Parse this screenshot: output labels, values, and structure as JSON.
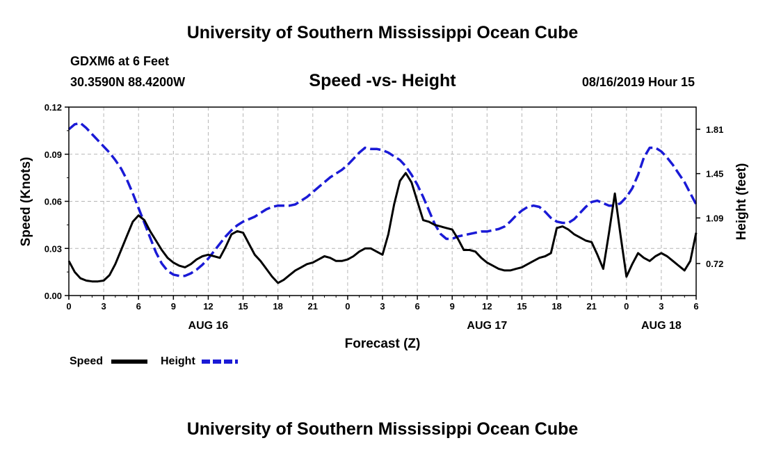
{
  "header": {
    "title": "University of Southern Mississippi Ocean Cube",
    "station": "GDXM6 at 6 Feet",
    "coords": "30.3590N 88.4200W",
    "date_hour": "08/16/2019 Hour 15"
  },
  "footer": {
    "title": "University of Southern Mississippi Ocean Cube"
  },
  "legend": {
    "speed_label": "Speed",
    "height_label": "Height"
  },
  "chart_data": {
    "type": "line",
    "title": "Speed -vs- Height",
    "xlabel": "Forecast (Z)",
    "ylabel_left": "Speed (Knots)",
    "ylabel_right": "Height (feet)",
    "x_unit": "hours since Aug 16 00Z",
    "xlim": [
      0,
      54
    ],
    "ylim_left": [
      0,
      0.12
    ],
    "ylim_right": [
      0.46,
      1.99
    ],
    "left_ticks": [
      "0.00",
      "0.03",
      "0.06",
      "0.09",
      "0.12"
    ],
    "right_ticks": [
      "0.72",
      "1.09",
      "1.45",
      "1.81"
    ],
    "x_ticks": [
      {
        "x": 0,
        "label": "0"
      },
      {
        "x": 3,
        "label": "3"
      },
      {
        "x": 6,
        "label": "6"
      },
      {
        "x": 9,
        "label": "9"
      },
      {
        "x": 12,
        "label": "12"
      },
      {
        "x": 15,
        "label": "15"
      },
      {
        "x": 18,
        "label": "18"
      },
      {
        "x": 21,
        "label": "21"
      },
      {
        "x": 24,
        "label": "0"
      },
      {
        "x": 27,
        "label": "3"
      },
      {
        "x": 30,
        "label": "6"
      },
      {
        "x": 33,
        "label": "9"
      },
      {
        "x": 36,
        "label": "12"
      },
      {
        "x": 39,
        "label": "15"
      },
      {
        "x": 42,
        "label": "18"
      },
      {
        "x": 45,
        "label": "21"
      },
      {
        "x": 48,
        "label": "0"
      },
      {
        "x": 51,
        "label": "3"
      },
      {
        "x": 54,
        "label": "6"
      }
    ],
    "day_labels": [
      {
        "x": 12,
        "label": "AUG 16"
      },
      {
        "x": 36,
        "label": "AUG 17"
      },
      {
        "x": 51,
        "label": "AUG 18"
      }
    ],
    "series": [
      {
        "name": "Speed",
        "axis": "left",
        "color": "#000000",
        "dash": "solid",
        "x": [
          0,
          0.5,
          1,
          1.5,
          2,
          2.5,
          3,
          3.5,
          4,
          4.5,
          5,
          5.5,
          6,
          6.5,
          7,
          7.5,
          8,
          8.5,
          9,
          9.5,
          10,
          10.5,
          11,
          11.5,
          12,
          12.5,
          13,
          13.5,
          14,
          14.5,
          15,
          15.5,
          16,
          16.5,
          17,
          17.5,
          18,
          18.5,
          19,
          19.5,
          20,
          20.5,
          21,
          21.5,
          22,
          22.5,
          23,
          23.5,
          24,
          24.5,
          25,
          25.5,
          26,
          26.5,
          27,
          27.5,
          28,
          28.5,
          29,
          29.5,
          30,
          30.5,
          31,
          31.5,
          32,
          32.5,
          33,
          33.5,
          34,
          34.5,
          35,
          35.5,
          36,
          36.5,
          37,
          37.5,
          38,
          38.5,
          39,
          39.5,
          40,
          40.5,
          41,
          41.5,
          42,
          42.5,
          43,
          43.5,
          44,
          44.5,
          45,
          45.5,
          46,
          46.5,
          47,
          47.5,
          48,
          48.5,
          49,
          49.5,
          50,
          50.5,
          51,
          51.5,
          52,
          52.5,
          53,
          53.5,
          54
        ],
        "values": [
          0.022,
          0.015,
          0.011,
          0.0095,
          0.009,
          0.009,
          0.0095,
          0.013,
          0.02,
          0.029,
          0.038,
          0.047,
          0.051,
          0.048,
          0.041,
          0.035,
          0.029,
          0.024,
          0.021,
          0.019,
          0.018,
          0.02,
          0.023,
          0.025,
          0.026,
          0.025,
          0.024,
          0.031,
          0.039,
          0.041,
          0.04,
          0.033,
          0.026,
          0.022,
          0.017,
          0.012,
          0.008,
          0.01,
          0.013,
          0.016,
          0.018,
          0.02,
          0.021,
          0.023,
          0.025,
          0.024,
          0.022,
          0.022,
          0.023,
          0.025,
          0.028,
          0.03,
          0.03,
          0.028,
          0.026,
          0.039,
          0.058,
          0.073,
          0.078,
          0.072,
          0.06,
          0.048,
          0.047,
          0.045,
          0.044,
          0.043,
          0.042,
          0.036,
          0.029,
          0.029,
          0.028,
          0.024,
          0.021,
          0.019,
          0.017,
          0.016,
          0.016,
          0.017,
          0.018,
          0.02,
          0.022,
          0.024,
          0.025,
          0.027,
          0.043,
          0.044,
          0.042,
          0.039,
          0.037,
          0.035,
          0.034,
          0.026,
          0.017,
          0.04,
          0.065,
          0.038,
          0.012,
          0.02,
          0.027,
          0.024,
          0.022,
          0.025,
          0.027,
          0.025,
          0.022,
          0.019,
          0.016,
          0.022,
          0.04
        ]
      },
      {
        "name": "Height",
        "axis": "right",
        "color": "#1a1ad6",
        "dash": "dashed",
        "x": [
          0,
          0.5,
          1,
          1.5,
          2,
          2.5,
          3,
          3.5,
          4,
          4.5,
          5,
          5.5,
          6,
          6.5,
          7,
          7.5,
          8,
          8.5,
          9,
          9.5,
          10,
          10.5,
          11,
          11.5,
          12,
          12.5,
          13,
          13.5,
          14,
          14.5,
          15,
          15.5,
          16,
          16.5,
          17,
          17.5,
          18,
          18.5,
          19,
          19.5,
          20,
          20.5,
          21,
          21.5,
          22,
          22.5,
          23,
          23.5,
          24,
          24.5,
          25,
          25.5,
          26,
          26.5,
          27,
          27.5,
          28,
          28.5,
          29,
          29.5,
          30,
          30.5,
          31,
          31.5,
          32,
          32.5,
          33,
          33.5,
          34,
          34.5,
          35,
          35.5,
          36,
          36.5,
          37,
          37.5,
          38,
          38.5,
          39,
          39.5,
          40,
          40.5,
          41,
          41.5,
          42,
          42.5,
          43,
          43.5,
          44,
          44.5,
          45,
          45.5,
          46,
          46.5,
          47,
          47.5,
          48,
          48.5,
          49,
          49.5,
          50,
          50.5,
          51,
          51.5,
          52,
          52.5,
          53,
          53.5,
          54
        ],
        "values": [
          1.81,
          1.85,
          1.86,
          1.82,
          1.77,
          1.72,
          1.67,
          1.62,
          1.56,
          1.49,
          1.4,
          1.29,
          1.17,
          1.05,
          0.93,
          0.81,
          0.72,
          0.66,
          0.63,
          0.62,
          0.62,
          0.64,
          0.67,
          0.71,
          0.76,
          0.82,
          0.88,
          0.94,
          0.99,
          1.03,
          1.06,
          1.08,
          1.1,
          1.13,
          1.16,
          1.18,
          1.19,
          1.19,
          1.19,
          1.2,
          1.23,
          1.26,
          1.3,
          1.34,
          1.38,
          1.42,
          1.45,
          1.48,
          1.52,
          1.57,
          1.62,
          1.66,
          1.65,
          1.65,
          1.64,
          1.62,
          1.59,
          1.56,
          1.51,
          1.44,
          1.36,
          1.26,
          1.15,
          1.04,
          0.96,
          0.92,
          0.92,
          0.94,
          0.95,
          0.96,
          0.97,
          0.98,
          0.98,
          0.99,
          1.0,
          1.02,
          1.06,
          1.11,
          1.15,
          1.18,
          1.19,
          1.18,
          1.14,
          1.09,
          1.06,
          1.05,
          1.05,
          1.08,
          1.13,
          1.18,
          1.22,
          1.23,
          1.21,
          1.19,
          1.19,
          1.21,
          1.26,
          1.33,
          1.44,
          1.58,
          1.66,
          1.66,
          1.63,
          1.58,
          1.52,
          1.45,
          1.38,
          1.29,
          1.2
        ]
      }
    ]
  }
}
